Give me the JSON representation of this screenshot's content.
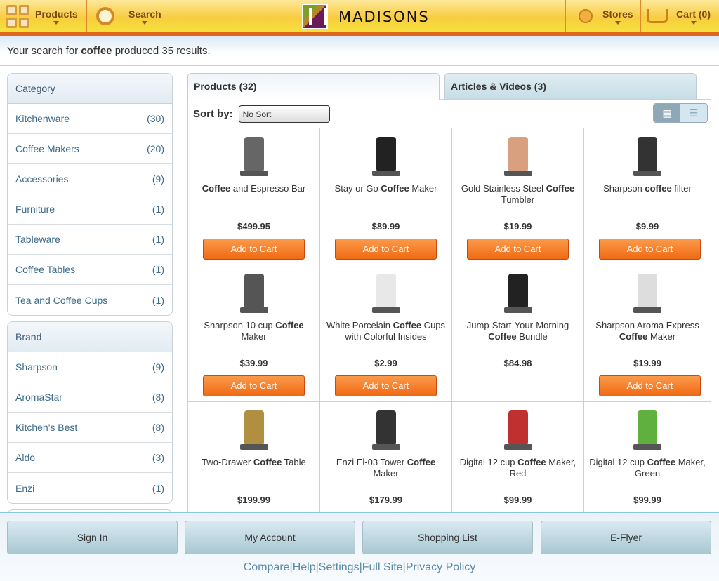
{
  "header": {
    "products": "Products",
    "search": "Search",
    "brand": "MADISONS",
    "stores": "Stores",
    "cart": "Cart (0)"
  },
  "search": {
    "prefix": "Your search for ",
    "term": "coffee",
    "suffix": " produced 35 results."
  },
  "category": {
    "title": "Category",
    "items": [
      {
        "label": "Kitchenware",
        "count": "(30)"
      },
      {
        "label": "Coffee Makers",
        "count": "(20)"
      },
      {
        "label": "Accessories",
        "count": "(9)"
      },
      {
        "label": "Furniture",
        "count": "(1)"
      },
      {
        "label": "Tableware",
        "count": "(1)"
      },
      {
        "label": "Coffee Tables",
        "count": "(1)"
      },
      {
        "label": "Tea and Coffee Cups",
        "count": "(1)"
      }
    ]
  },
  "brand": {
    "title": "Brand",
    "items": [
      {
        "label": "Sharpson",
        "count": "(9)"
      },
      {
        "label": "AromaStar",
        "count": "(8)"
      },
      {
        "label": "Kitchen's Best",
        "count": "(8)"
      },
      {
        "label": "Aldo",
        "count": "(3)"
      },
      {
        "label": "Enzi",
        "count": "(1)"
      }
    ]
  },
  "tabs": {
    "products": "Products (32)",
    "articles": "Articles & Videos (3)"
  },
  "sort": {
    "label": "Sort by:",
    "value": "No Sort"
  },
  "add_label": "Add to Cart",
  "products": [
    {
      "pre": "",
      "bold": "Coffee",
      "post": " and Espresso Bar",
      "price": "$499.95",
      "cart": true,
      "color": "#666"
    },
    {
      "pre": "Stay or Go ",
      "bold": "Coffee",
      "post": " Maker",
      "price": "$89.99",
      "cart": true,
      "color": "#222"
    },
    {
      "pre": "Gold Stainless Steel ",
      "bold": "Coffee",
      "post": " Tumbler",
      "price": "$19.99",
      "cart": true,
      "color": "#d9a080"
    },
    {
      "pre": "Sharpson ",
      "bold": "coffee",
      "post": " filter",
      "price": "$9.99",
      "cart": true,
      "color": "#333"
    },
    {
      "pre": "Sharpson 10 cup ",
      "bold": "Coffee",
      "post": " Maker",
      "price": "$39.99",
      "cart": true,
      "color": "#555"
    },
    {
      "pre": "White Porcelain ",
      "bold": "Coffee",
      "post": " Cups with Colorful Insides",
      "price": "$2.99",
      "cart": true,
      "color": "#e8e8e8"
    },
    {
      "pre": "Jump-Start-Your-Morning ",
      "bold": "Coffee",
      "post": " Bundle",
      "price": "$84.98",
      "cart": false,
      "color": "#222"
    },
    {
      "pre": "Sharpson Aroma Express ",
      "bold": "Coffee",
      "post": " Maker",
      "price": "$19.99",
      "cart": true,
      "color": "#ddd"
    },
    {
      "pre": "Two-Drawer ",
      "bold": "Coffee",
      "post": " Table",
      "price": "$199.99",
      "cart": true,
      "color": "#b09040"
    },
    {
      "pre": "Enzi El-03 Tower ",
      "bold": "Coffee",
      "post": " Maker",
      "price": "$179.99",
      "cart": true,
      "color": "#333"
    },
    {
      "pre": "Digital 12 cup ",
      "bold": "Coffee",
      "post": " Maker, Red",
      "price": "$99.99",
      "cart": true,
      "color": "#c03030"
    },
    {
      "pre": "Digital 12 cup ",
      "bold": "Coffee",
      "post": " Maker, Green",
      "price": "$99.99",
      "cart": true,
      "color": "#60b040"
    }
  ],
  "footer": {
    "buttons": [
      "Sign In",
      "My Account",
      "Shopping List",
      "E-Flyer"
    ],
    "links": [
      "Compare",
      "Help",
      "Settings",
      "Full Site",
      "Privacy Policy"
    ]
  }
}
